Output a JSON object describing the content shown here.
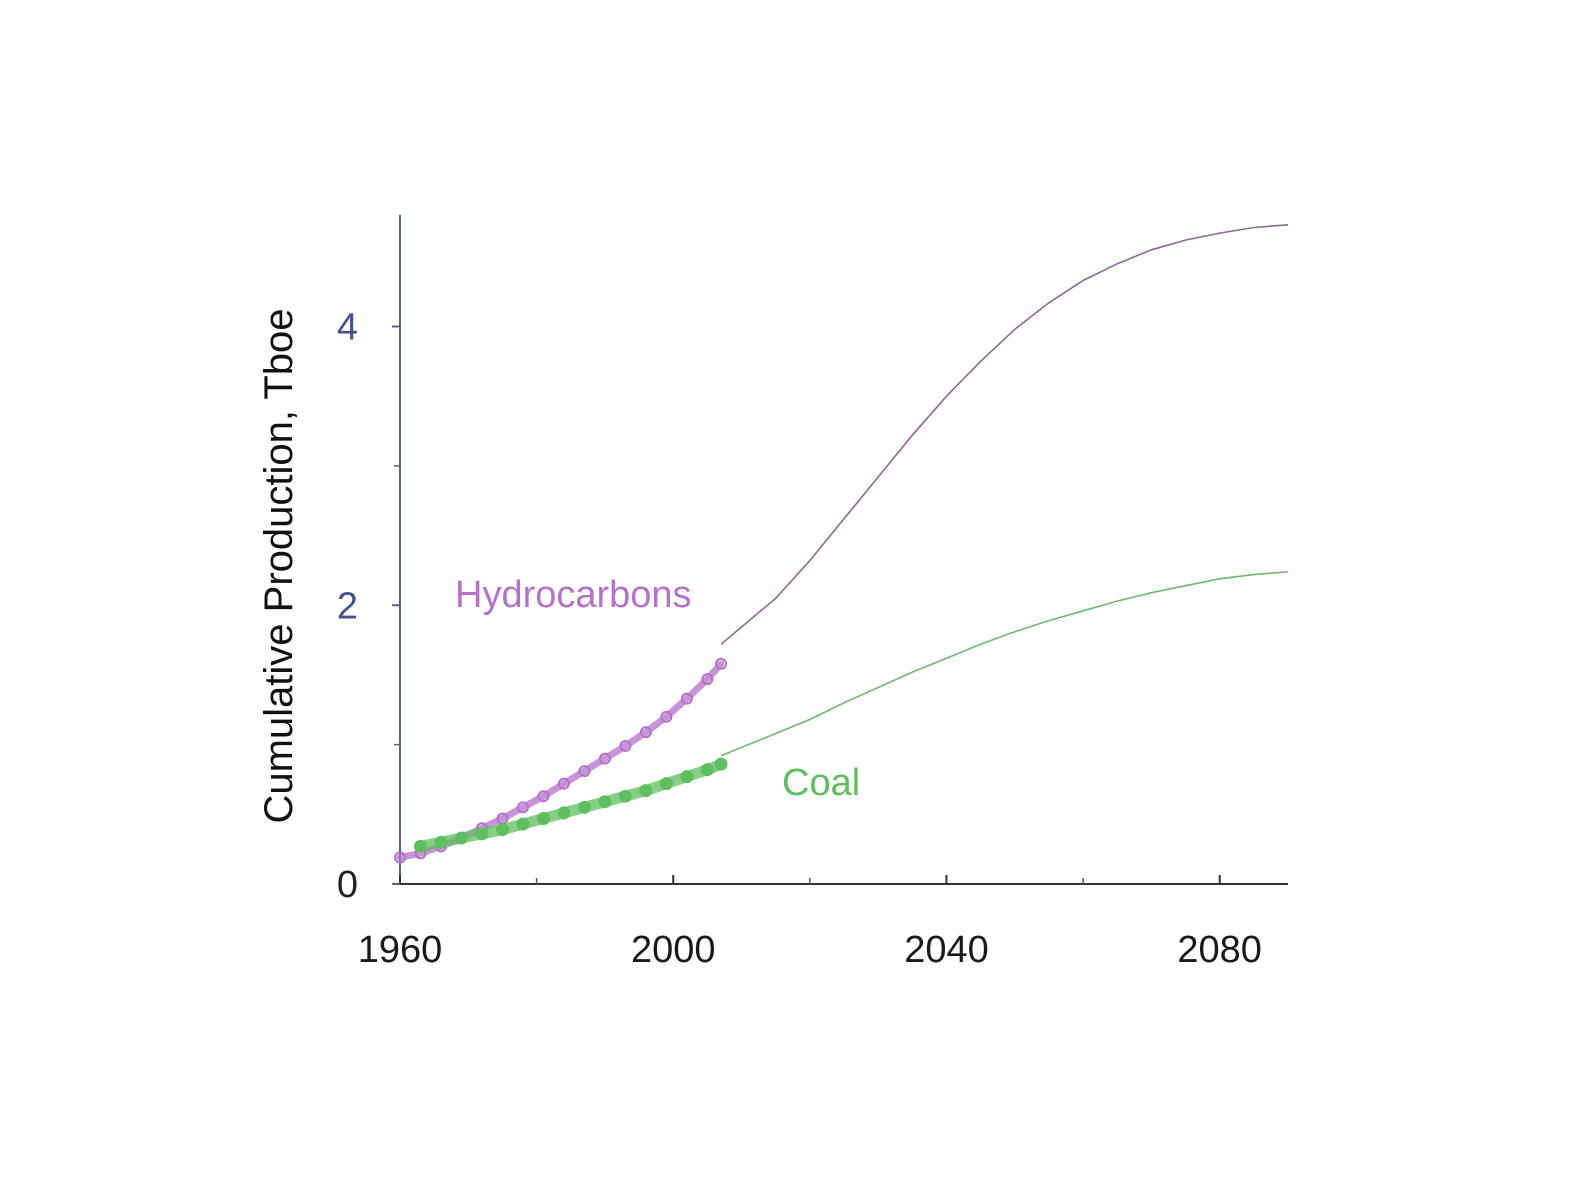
{
  "chart_data": {
    "type": "line",
    "title": "",
    "xlabel": "",
    "ylabel": "Cumulative Production, Tboe",
    "xlim": [
      1960,
      2090
    ],
    "ylim": [
      0,
      4.8
    ],
    "x_ticks": [
      1960,
      2000,
      2040,
      2080
    ],
    "x_minor_ticks": [
      1980,
      2020,
      2060
    ],
    "y_ticks": [
      0,
      2,
      4
    ],
    "y_minor_ticks": [
      1,
      3
    ],
    "grid": false,
    "colors": {
      "axis": "#5b5f8a",
      "ytick_label": "#4a4f8a",
      "hydrocarbons": "#b472c9",
      "hydrocarbons_fit": "#8a6a8e",
      "coal": "#5fbf5f",
      "coal_fit": "#6fb86f"
    },
    "series": [
      {
        "name": "Hydrocarbons",
        "historical": {
          "x": [
            1960,
            1963,
            1966,
            1969,
            1972,
            1975,
            1978,
            1981,
            1984,
            1987,
            1990,
            1993,
            1996,
            1999,
            2002,
            2005,
            2007
          ],
          "y": [
            0.19,
            0.22,
            0.27,
            0.33,
            0.4,
            0.47,
            0.55,
            0.63,
            0.72,
            0.81,
            0.9,
            0.99,
            1.09,
            1.2,
            1.33,
            1.47,
            1.58
          ]
        },
        "projection": {
          "x": [
            2007,
            2015,
            2020,
            2025,
            2030,
            2035,
            2040,
            2045,
            2050,
            2055,
            2060,
            2065,
            2070,
            2075,
            2080,
            2085,
            2090
          ],
          "y": [
            1.72,
            2.05,
            2.32,
            2.62,
            2.92,
            3.22,
            3.5,
            3.75,
            3.98,
            4.17,
            4.33,
            4.45,
            4.55,
            4.62,
            4.67,
            4.71,
            4.73
          ]
        }
      },
      {
        "name": "Coal",
        "historical": {
          "x": [
            1963,
            1966,
            1969,
            1972,
            1975,
            1978,
            1981,
            1984,
            1987,
            1990,
            1993,
            1996,
            1999,
            2002,
            2005,
            2007
          ],
          "y": [
            0.27,
            0.3,
            0.33,
            0.36,
            0.39,
            0.43,
            0.47,
            0.51,
            0.55,
            0.59,
            0.63,
            0.67,
            0.72,
            0.77,
            0.82,
            0.86
          ]
        },
        "projection": {
          "x": [
            2007,
            2015,
            2020,
            2025,
            2030,
            2035,
            2040,
            2045,
            2050,
            2055,
            2060,
            2065,
            2070,
            2075,
            2080,
            2085,
            2090
          ],
          "y": [
            0.92,
            1.08,
            1.18,
            1.3,
            1.41,
            1.52,
            1.62,
            1.72,
            1.81,
            1.89,
            1.96,
            2.03,
            2.09,
            2.14,
            2.19,
            2.22,
            2.24
          ]
        }
      }
    ]
  }
}
